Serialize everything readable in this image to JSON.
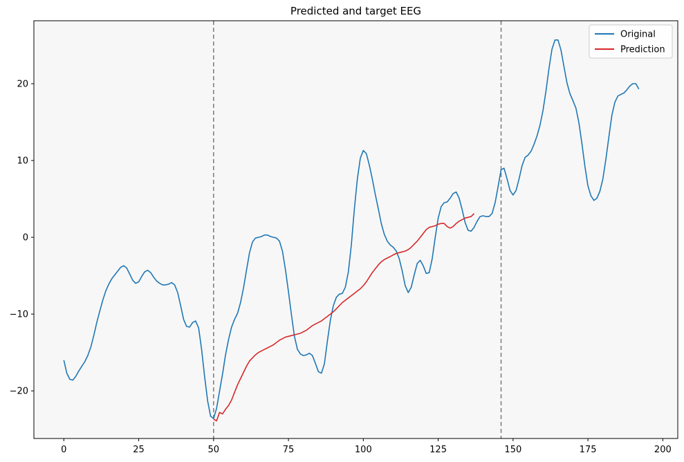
{
  "chart_data": {
    "type": "line",
    "title": "Predicted and target EEG",
    "xlabel": "",
    "ylabel": "",
    "xlim": [
      -10,
      205
    ],
    "ylim": [
      -26.2,
      28.2
    ],
    "x_ticks": [
      0,
      25,
      50,
      75,
      100,
      125,
      150,
      175,
      200
    ],
    "y_ticks": [
      -20,
      -10,
      0,
      10,
      20
    ],
    "x_tick_labels": [
      "0",
      "25",
      "50",
      "75",
      "100",
      "125",
      "150",
      "175",
      "200"
    ],
    "y_tick_labels": [
      "−20",
      "−10",
      "0",
      "10",
      "20"
    ],
    "grid": false,
    "legend_position": "top-right",
    "background": "#f7f7f7",
    "vertical_lines": [
      {
        "x": 50,
        "style": "dashed",
        "color": "#808080"
      },
      {
        "x": 146,
        "style": "dashed",
        "color": "#808080"
      }
    ],
    "series": [
      {
        "name": "Original",
        "color": "#1f77b4",
        "points": [
          [
            0,
            -16
          ],
          [
            1,
            -17.7
          ],
          [
            2,
            -18.5
          ],
          [
            3,
            -18.6
          ],
          [
            4,
            -18.1
          ],
          [
            5,
            -17.4
          ],
          [
            6,
            -16.8
          ],
          [
            7,
            -16.2
          ],
          [
            8,
            -15.4
          ],
          [
            9,
            -14.3
          ],
          [
            10,
            -12.8
          ],
          [
            11,
            -11.1
          ],
          [
            12,
            -9.6
          ],
          [
            13,
            -8.2
          ],
          [
            14,
            -7
          ],
          [
            15,
            -6.1
          ],
          [
            16,
            -5.4
          ],
          [
            17,
            -4.9
          ],
          [
            18,
            -4.4
          ],
          [
            19,
            -3.9
          ],
          [
            20,
            -3.7
          ],
          [
            21,
            -4
          ],
          [
            22,
            -4.8
          ],
          [
            23,
            -5.6
          ],
          [
            24,
            -6
          ],
          [
            25,
            -5.8
          ],
          [
            26,
            -5.1
          ],
          [
            27,
            -4.5
          ],
          [
            28,
            -4.3
          ],
          [
            29,
            -4.6
          ],
          [
            30,
            -5.2
          ],
          [
            31,
            -5.7
          ],
          [
            32,
            -6
          ],
          [
            33,
            -6.2
          ],
          [
            34,
            -6.2
          ],
          [
            35,
            -6.1
          ],
          [
            36,
            -5.9
          ],
          [
            37,
            -6.2
          ],
          [
            38,
            -7.2
          ],
          [
            39,
            -8.9
          ],
          [
            40,
            -10.7
          ],
          [
            41,
            -11.6
          ],
          [
            42,
            -11.7
          ],
          [
            43,
            -11.1
          ],
          [
            44,
            -10.9
          ],
          [
            45,
            -11.8
          ],
          [
            46,
            -14.6
          ],
          [
            47,
            -18.1
          ],
          [
            48,
            -21.3
          ],
          [
            49,
            -23.3
          ],
          [
            50,
            -23.6
          ],
          [
            51,
            -22.3
          ],
          [
            52,
            -20
          ],
          [
            53,
            -17.8
          ],
          [
            54,
            -15.3
          ],
          [
            55,
            -13.3
          ],
          [
            56,
            -11.7
          ],
          [
            57,
            -10.7
          ],
          [
            58,
            -9.9
          ],
          [
            59,
            -8.5
          ],
          [
            60,
            -6.6
          ],
          [
            61,
            -4.3
          ],
          [
            62,
            -2
          ],
          [
            63,
            -0.6
          ],
          [
            64,
            -0.1
          ],
          [
            65,
            0
          ],
          [
            66,
            0.1
          ],
          [
            67,
            0.3
          ],
          [
            68,
            0.3
          ],
          [
            69,
            0.1
          ],
          [
            70,
            0
          ],
          [
            71,
            -0.1
          ],
          [
            72,
            -0.5
          ],
          [
            73,
            -1.8
          ],
          [
            74,
            -4.2
          ],
          [
            75,
            -7.1
          ],
          [
            76,
            -10.1
          ],
          [
            77,
            -12.9
          ],
          [
            78,
            -14.6
          ],
          [
            79,
            -15.2
          ],
          [
            80,
            -15.4
          ],
          [
            81,
            -15.3
          ],
          [
            82,
            -15.1
          ],
          [
            83,
            -15.4
          ],
          [
            84,
            -16.4
          ],
          [
            85,
            -17.5
          ],
          [
            86,
            -17.7
          ],
          [
            87,
            -16.5
          ],
          [
            88,
            -13.5
          ],
          [
            89,
            -10.8
          ],
          [
            90,
            -8.9
          ],
          [
            91,
            -7.8
          ],
          [
            92,
            -7.4
          ],
          [
            93,
            -7.3
          ],
          [
            94,
            -6.5
          ],
          [
            95,
            -4.5
          ],
          [
            96,
            -1
          ],
          [
            97,
            3.6
          ],
          [
            98,
            7.6
          ],
          [
            99,
            10.3
          ],
          [
            100,
            11.3
          ],
          [
            101,
            10.9
          ],
          [
            102,
            9.4
          ],
          [
            103,
            7.6
          ],
          [
            104,
            5.6
          ],
          [
            105,
            3.7
          ],
          [
            106,
            1.8
          ],
          [
            107,
            0.4
          ],
          [
            108,
            -0.5
          ],
          [
            109,
            -1
          ],
          [
            110,
            -1.3
          ],
          [
            111,
            -1.8
          ],
          [
            112,
            -2.8
          ],
          [
            113,
            -4.4
          ],
          [
            114,
            -6.3
          ],
          [
            115,
            -7.2
          ],
          [
            116,
            -6.5
          ],
          [
            117,
            -4.9
          ],
          [
            118,
            -3.4
          ],
          [
            119,
            -3
          ],
          [
            120,
            -3.7
          ],
          [
            121,
            -4.7
          ],
          [
            122,
            -4.6
          ],
          [
            123,
            -2.8
          ],
          [
            124,
            0
          ],
          [
            125,
            2.5
          ],
          [
            126,
            4
          ],
          [
            127,
            4.5
          ],
          [
            128,
            4.6
          ],
          [
            129,
            5.1
          ],
          [
            130,
            5.7
          ],
          [
            131,
            5.9
          ],
          [
            132,
            5.1
          ],
          [
            133,
            3.6
          ],
          [
            134,
            1.9
          ],
          [
            135,
            0.9
          ],
          [
            136,
            0.8
          ],
          [
            137,
            1.3
          ],
          [
            138,
            2.1
          ],
          [
            139,
            2.7
          ],
          [
            140,
            2.8
          ],
          [
            141,
            2.7
          ],
          [
            142,
            2.7
          ],
          [
            143,
            3.1
          ],
          [
            144,
            4.5
          ],
          [
            145,
            6.6
          ],
          [
            146,
            8.8
          ],
          [
            147,
            9
          ],
          [
            148,
            7.6
          ],
          [
            149,
            6.1
          ],
          [
            150,
            5.5
          ],
          [
            151,
            6.1
          ],
          [
            152,
            7.6
          ],
          [
            153,
            9.3
          ],
          [
            154,
            10.4
          ],
          [
            155,
            10.7
          ],
          [
            156,
            11.2
          ],
          [
            157,
            12.1
          ],
          [
            158,
            13.2
          ],
          [
            159,
            14.6
          ],
          [
            160,
            16.5
          ],
          [
            161,
            19.1
          ],
          [
            162,
            22
          ],
          [
            163,
            24.5
          ],
          [
            164,
            25.7
          ],
          [
            165,
            25.7
          ],
          [
            166,
            24.4
          ],
          [
            167,
            22.2
          ],
          [
            168,
            20.1
          ],
          [
            169,
            18.7
          ],
          [
            170,
            17.8
          ],
          [
            171,
            16.8
          ],
          [
            172,
            14.9
          ],
          [
            173,
            12.2
          ],
          [
            174,
            9.2
          ],
          [
            175,
            6.7
          ],
          [
            176,
            5.4
          ],
          [
            177,
            4.8
          ],
          [
            178,
            5.1
          ],
          [
            179,
            6
          ],
          [
            180,
            7.6
          ],
          [
            181,
            10.2
          ],
          [
            182,
            13.1
          ],
          [
            183,
            15.9
          ],
          [
            184,
            17.6
          ],
          [
            185,
            18.4
          ],
          [
            186,
            18.6
          ],
          [
            187,
            18.8
          ],
          [
            188,
            19.2
          ],
          [
            189,
            19.7
          ],
          [
            190,
            20
          ],
          [
            191,
            20
          ],
          [
            192,
            19.3
          ]
        ]
      },
      {
        "name": "Prediction",
        "color": "#d62728",
        "points": [
          [
            50,
            -23.7
          ],
          [
            51,
            -23.9
          ],
          [
            52,
            -22.8
          ],
          [
            53,
            -23
          ],
          [
            54,
            -22.4
          ],
          [
            55,
            -21.9
          ],
          [
            56,
            -21.2
          ],
          [
            57,
            -20.2
          ],
          [
            58,
            -19.2
          ],
          [
            59,
            -18.4
          ],
          [
            60,
            -17.6
          ],
          [
            61,
            -16.8
          ],
          [
            62,
            -16.1
          ],
          [
            63,
            -15.7
          ],
          [
            64,
            -15.3
          ],
          [
            65,
            -15
          ],
          [
            66,
            -14.8
          ],
          [
            67,
            -14.6
          ],
          [
            68,
            -14.4
          ],
          [
            69,
            -14.2
          ],
          [
            70,
            -14
          ],
          [
            71,
            -13.7
          ],
          [
            72,
            -13.4
          ],
          [
            73,
            -13.2
          ],
          [
            74,
            -13
          ],
          [
            75,
            -12.9
          ],
          [
            76,
            -12.8
          ],
          [
            77,
            -12.7
          ],
          [
            78,
            -12.6
          ],
          [
            79,
            -12.5
          ],
          [
            80,
            -12.3
          ],
          [
            81,
            -12.1
          ],
          [
            82,
            -11.8
          ],
          [
            83,
            -11.5
          ],
          [
            84,
            -11.3
          ],
          [
            85,
            -11.1
          ],
          [
            86,
            -10.9
          ],
          [
            87,
            -10.6
          ],
          [
            88,
            -10.3
          ],
          [
            89,
            -10
          ],
          [
            90,
            -9.7
          ],
          [
            91,
            -9.3
          ],
          [
            92,
            -8.9
          ],
          [
            93,
            -8.5
          ],
          [
            94,
            -8.2
          ],
          [
            95,
            -7.9
          ],
          [
            96,
            -7.6
          ],
          [
            97,
            -7.3
          ],
          [
            98,
            -7
          ],
          [
            99,
            -6.7
          ],
          [
            100,
            -6.3
          ],
          [
            101,
            -5.8
          ],
          [
            102,
            -5.2
          ],
          [
            103,
            -4.6
          ],
          [
            104,
            -4.1
          ],
          [
            105,
            -3.6
          ],
          [
            106,
            -3.2
          ],
          [
            107,
            -2.9
          ],
          [
            108,
            -2.7
          ],
          [
            109,
            -2.5
          ],
          [
            110,
            -2.3
          ],
          [
            111,
            -2.1
          ],
          [
            112,
            -2
          ],
          [
            113,
            -1.9
          ],
          [
            114,
            -1.8
          ],
          [
            115,
            -1.6
          ],
          [
            116,
            -1.3
          ],
          [
            117,
            -0.9
          ],
          [
            118,
            -0.5
          ],
          [
            119,
            0
          ],
          [
            120,
            0.5
          ],
          [
            121,
            1
          ],
          [
            122,
            1.3
          ],
          [
            123,
            1.4
          ],
          [
            124,
            1.5
          ],
          [
            125,
            1.7
          ],
          [
            126,
            1.8
          ],
          [
            127,
            1.8
          ],
          [
            128,
            1.4
          ],
          [
            129,
            1.2
          ],
          [
            130,
            1.4
          ],
          [
            131,
            1.8
          ],
          [
            132,
            2.1
          ],
          [
            133,
            2.3
          ],
          [
            134,
            2.5
          ],
          [
            135,
            2.6
          ],
          [
            136,
            2.7
          ],
          [
            137,
            3.1
          ]
        ]
      }
    ]
  }
}
